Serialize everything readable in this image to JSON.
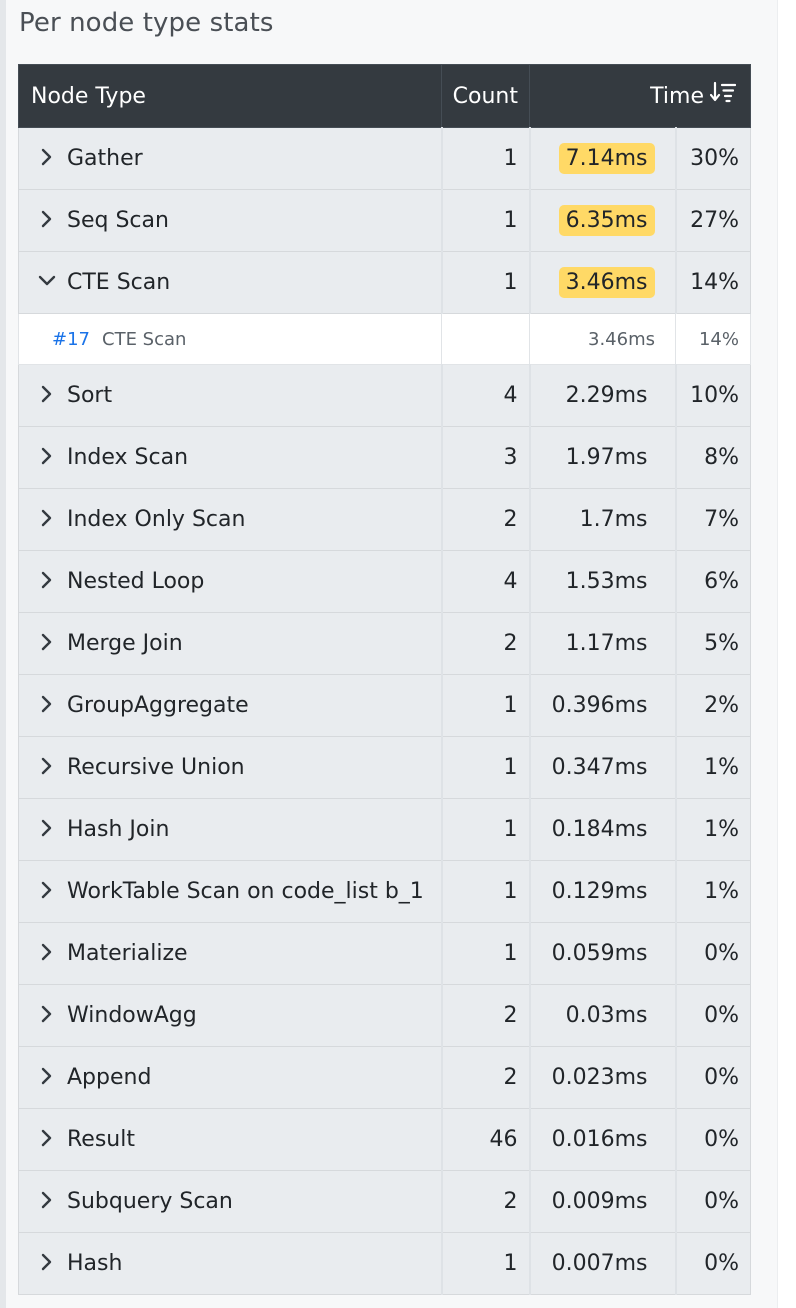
{
  "panel": {
    "title": "Per node type stats"
  },
  "table": {
    "headers": {
      "node_type": "Node Type",
      "count": "Count",
      "time": "Time"
    },
    "rows": [
      {
        "name": "Gather",
        "count": "1",
        "time": "7.14ms",
        "pct": "30%",
        "highlight": true,
        "expanded": false
      },
      {
        "name": "Seq Scan",
        "count": "1",
        "time": "6.35ms",
        "pct": "27%",
        "highlight": true,
        "expanded": false
      },
      {
        "name": "CTE Scan",
        "count": "1",
        "time": "3.46ms",
        "pct": "14%",
        "highlight": true,
        "expanded": true,
        "details": [
          {
            "node_id": "#17",
            "name": "CTE Scan",
            "time": "3.46ms",
            "pct": "14%"
          }
        ]
      },
      {
        "name": "Sort",
        "count": "4",
        "time": "2.29ms",
        "pct": "10%",
        "highlight": false,
        "expanded": false
      },
      {
        "name": "Index Scan",
        "count": "3",
        "time": "1.97ms",
        "pct": "8%",
        "highlight": false,
        "expanded": false
      },
      {
        "name": "Index Only Scan",
        "count": "2",
        "time": "1.7ms",
        "pct": "7%",
        "highlight": false,
        "expanded": false
      },
      {
        "name": "Nested Loop",
        "count": "4",
        "time": "1.53ms",
        "pct": "6%",
        "highlight": false,
        "expanded": false
      },
      {
        "name": "Merge Join",
        "count": "2",
        "time": "1.17ms",
        "pct": "5%",
        "highlight": false,
        "expanded": false
      },
      {
        "name": "GroupAggregate",
        "count": "1",
        "time": "0.396ms",
        "pct": "2%",
        "highlight": false,
        "expanded": false
      },
      {
        "name": "Recursive Union",
        "count": "1",
        "time": "0.347ms",
        "pct": "1%",
        "highlight": false,
        "expanded": false
      },
      {
        "name": "Hash Join",
        "count": "1",
        "time": "0.184ms",
        "pct": "1%",
        "highlight": false,
        "expanded": false
      },
      {
        "name": "WorkTable Scan on code_list b_1",
        "count": "1",
        "time": "0.129ms",
        "pct": "1%",
        "highlight": false,
        "expanded": false
      },
      {
        "name": "Materialize",
        "count": "1",
        "time": "0.059ms",
        "pct": "0%",
        "highlight": false,
        "expanded": false
      },
      {
        "name": "WindowAgg",
        "count": "2",
        "time": "0.03ms",
        "pct": "0%",
        "highlight": false,
        "expanded": false
      },
      {
        "name": "Append",
        "count": "2",
        "time": "0.023ms",
        "pct": "0%",
        "highlight": false,
        "expanded": false
      },
      {
        "name": "Result",
        "count": "46",
        "time": "0.016ms",
        "pct": "0%",
        "highlight": false,
        "expanded": false
      },
      {
        "name": "Subquery Scan",
        "count": "2",
        "time": "0.009ms",
        "pct": "0%",
        "highlight": false,
        "expanded": false
      },
      {
        "name": "Hash",
        "count": "1",
        "time": "0.007ms",
        "pct": "0%",
        "highlight": false,
        "expanded": false
      }
    ]
  },
  "colors": {
    "header_bg": "#343a40",
    "row_bg": "#e9ecef",
    "highlight_bg": "#ffd966",
    "link": "#1a73e8"
  },
  "icons": {
    "collapsed": "chevron-right-icon",
    "expanded": "chevron-down-icon",
    "sort": "sort-descending-icon"
  }
}
